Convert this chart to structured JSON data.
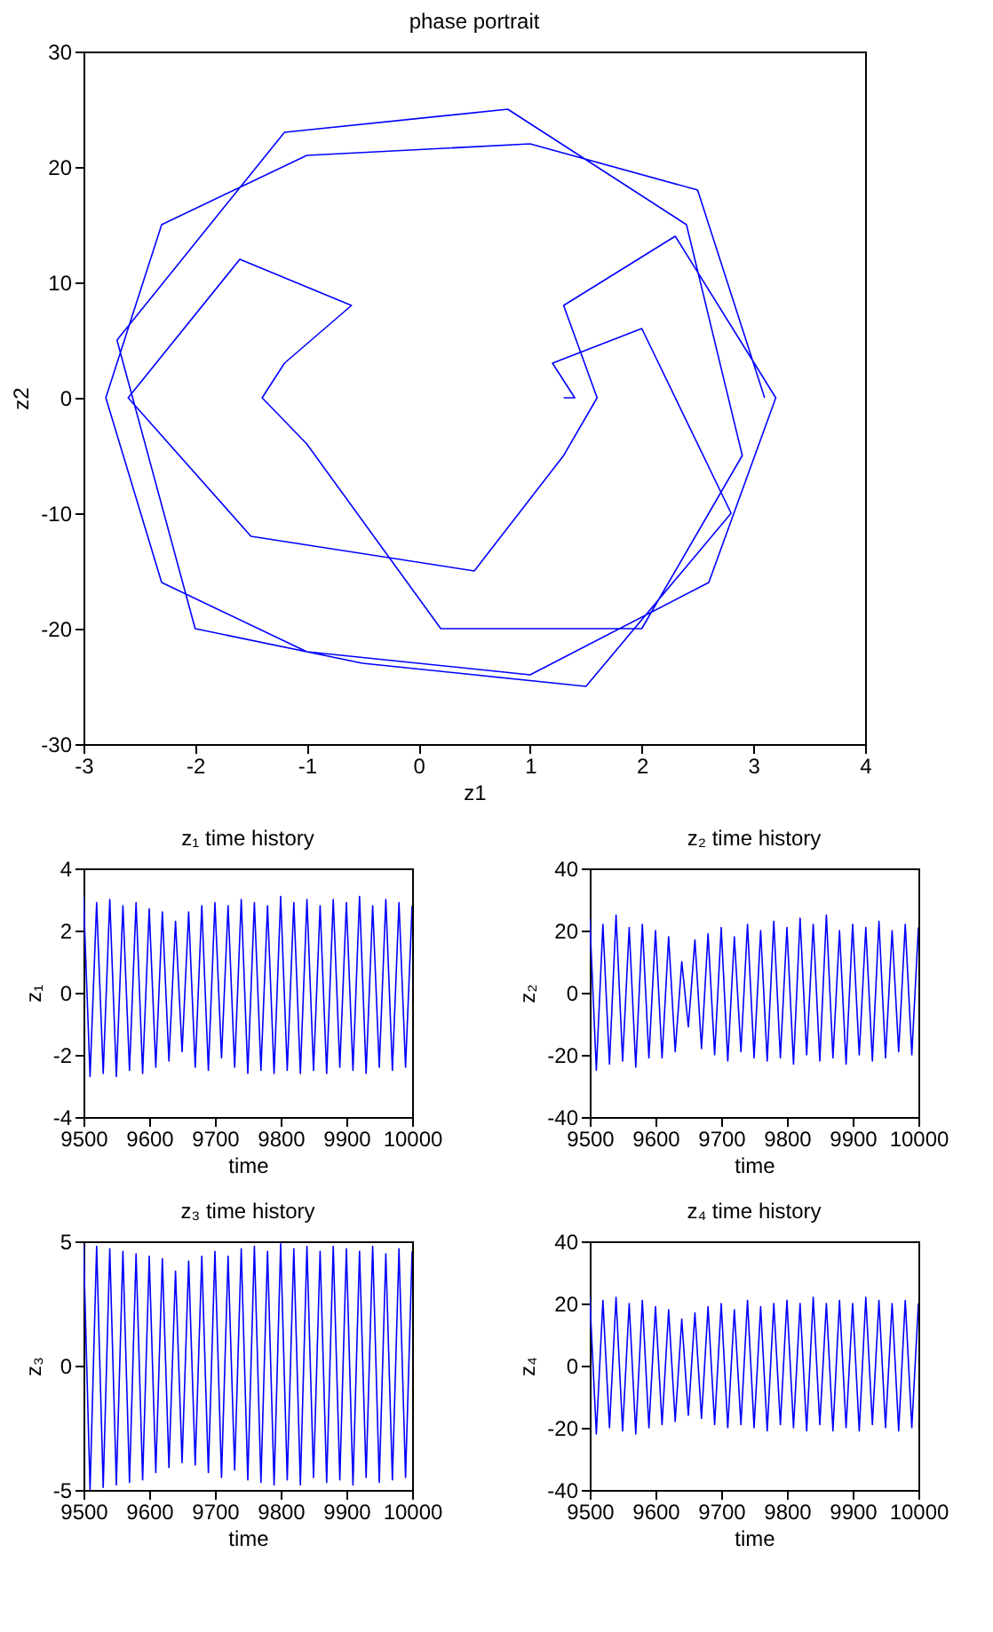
{
  "chart_data": [
    {
      "type": "line",
      "title": "phase portrait",
      "xlabel": "z1",
      "ylabel": "z2",
      "xlim": [
        -3,
        4
      ],
      "ylim": [
        -30,
        30
      ],
      "xticks": [
        -3,
        -2,
        -1,
        0,
        1,
        2,
        3,
        4
      ],
      "yticks": [
        -30,
        -20,
        -10,
        0,
        10,
        20,
        30
      ],
      "grid": false,
      "x": [
        3.1,
        2.5,
        1.0,
        -1.0,
        -2.3,
        -2.8,
        -2.3,
        -1.0,
        1.0,
        2.6,
        3.2,
        2.3,
        1.3,
        1.6,
        1.3,
        0.5,
        -1.5,
        -2.6,
        -1.6,
        -0.6,
        -1.2,
        -1.4,
        -1.0,
        0.2,
        2.0,
        2.9,
        2.4,
        0.8,
        -1.2,
        -2.7,
        -2.0,
        -0.5,
        1.5,
        2.8,
        2.0,
        1.2,
        1.4,
        1.3
      ],
      "series": [
        {
          "color": "#0000ff",
          "values": [
            0,
            18,
            22,
            21,
            15,
            0,
            -16,
            -22,
            -24,
            -16,
            0,
            14,
            8,
            0,
            -5,
            -15,
            -12,
            0,
            12,
            8,
            3,
            0,
            -4,
            -20,
            -20,
            -5,
            15,
            25,
            23,
            5,
            -20,
            -23,
            -25,
            -10,
            6,
            3,
            0,
            0
          ]
        }
      ]
    },
    {
      "type": "line",
      "title": "z₁ time history",
      "xlabel": "time",
      "ylabel": "z₁",
      "xlim": [
        9500,
        10000
      ],
      "ylim": [
        -4,
        4
      ],
      "xticks": [
        9500,
        9600,
        9700,
        9800,
        9900,
        10000
      ],
      "yticks": [
        -4,
        -2,
        0,
        2,
        4
      ],
      "grid": false,
      "x": [
        9500,
        9510,
        9520,
        9530,
        9540,
        9550,
        9560,
        9570,
        9580,
        9590,
        9600,
        9610,
        9620,
        9630,
        9640,
        9650,
        9660,
        9670,
        9680,
        9690,
        9700,
        9710,
        9720,
        9730,
        9740,
        9750,
        9760,
        9770,
        9780,
        9790,
        9800,
        9810,
        9820,
        9830,
        9840,
        9850,
        9860,
        9870,
        9880,
        9890,
        9900,
        9910,
        9920,
        9930,
        9940,
        9950,
        9960,
        9970,
        9980,
        9990,
        10000
      ],
      "series": [
        {
          "color": "#0000ff",
          "values": [
            3.1,
            -2.7,
            2.9,
            -2.6,
            3.0,
            -2.7,
            2.8,
            -2.5,
            2.9,
            -2.6,
            2.7,
            -2.4,
            2.6,
            -2.2,
            2.3,
            -1.9,
            2.6,
            -2.4,
            2.8,
            -2.5,
            2.9,
            -2.1,
            2.8,
            -2.4,
            3.0,
            -2.6,
            2.9,
            -2.5,
            2.8,
            -2.6,
            3.1,
            -2.5,
            2.9,
            -2.6,
            3.0,
            -2.5,
            2.8,
            -2.6,
            3.0,
            -2.4,
            2.9,
            -2.5,
            3.1,
            -2.6,
            2.8,
            -2.4,
            3.0,
            -2.5,
            2.9,
            -2.4,
            2.8
          ]
        }
      ]
    },
    {
      "type": "line",
      "title": "z₂ time history",
      "xlabel": "time",
      "ylabel": "z₂",
      "xlim": [
        9500,
        10000
      ],
      "ylim": [
        -40,
        40
      ],
      "xticks": [
        9500,
        9600,
        9700,
        9800,
        9900,
        10000
      ],
      "yticks": [
        -40,
        -20,
        0,
        20,
        40
      ],
      "grid": false,
      "x": [
        9500,
        9510,
        9520,
        9530,
        9540,
        9550,
        9560,
        9570,
        9580,
        9590,
        9600,
        9610,
        9620,
        9630,
        9640,
        9650,
        9660,
        9670,
        9680,
        9690,
        9700,
        9710,
        9720,
        9730,
        9740,
        9750,
        9760,
        9770,
        9780,
        9790,
        9800,
        9810,
        9820,
        9830,
        9840,
        9850,
        9860,
        9870,
        9880,
        9890,
        9900,
        9910,
        9920,
        9930,
        9940,
        9950,
        9960,
        9970,
        9980,
        9990,
        10000
      ],
      "series": [
        {
          "color": "#0000ff",
          "values": [
            24,
            -25,
            22,
            -23,
            25,
            -22,
            21,
            -24,
            22,
            -21,
            20,
            -21,
            18,
            -19,
            10,
            -11,
            17,
            -18,
            19,
            -20,
            21,
            -22,
            18,
            -19,
            22,
            -21,
            20,
            -22,
            23,
            -21,
            21,
            -23,
            24,
            -20,
            22,
            -22,
            25,
            -21,
            20,
            -23,
            22,
            -20,
            21,
            -22,
            23,
            -21,
            20,
            -19,
            22,
            -20,
            21
          ]
        }
      ]
    },
    {
      "type": "line",
      "title": "z₃ time history",
      "xlabel": "time",
      "ylabel": "z₃",
      "xlim": [
        9500,
        10000
      ],
      "ylim": [
        -5,
        5
      ],
      "xticks": [
        9500,
        9600,
        9700,
        9800,
        9900,
        10000
      ],
      "yticks": [
        -5,
        0,
        5
      ],
      "grid": false,
      "x": [
        9500,
        9510,
        9520,
        9530,
        9540,
        9550,
        9560,
        9570,
        9580,
        9590,
        9600,
        9610,
        9620,
        9630,
        9640,
        9650,
        9660,
        9670,
        9680,
        9690,
        9700,
        9710,
        9720,
        9730,
        9740,
        9750,
        9760,
        9770,
        9780,
        9790,
        9800,
        9810,
        9820,
        9830,
        9840,
        9850,
        9860,
        9870,
        9880,
        9890,
        9900,
        9910,
        9920,
        9930,
        9940,
        9950,
        9960,
        9970,
        9980,
        9990,
        10000
      ],
      "series": [
        {
          "color": "#0000ff",
          "values": [
            4.9,
            -5.0,
            4.8,
            -4.9,
            4.7,
            -4.8,
            4.6,
            -4.7,
            4.5,
            -4.6,
            4.4,
            -4.3,
            4.3,
            -4.1,
            3.8,
            -3.9,
            4.2,
            -4.0,
            4.4,
            -4.3,
            4.6,
            -4.5,
            4.4,
            -4.2,
            4.7,
            -4.6,
            4.8,
            -4.7,
            4.6,
            -4.8,
            4.9,
            -4.6,
            4.7,
            -4.8,
            4.8,
            -4.5,
            4.6,
            -4.7,
            4.8,
            -4.6,
            4.7,
            -4.8,
            4.6,
            -4.5,
            4.8,
            -4.7,
            4.5,
            -4.6,
            4.7,
            -4.5,
            4.6
          ]
        }
      ]
    },
    {
      "type": "line",
      "title": "z₄ time history",
      "xlabel": "time",
      "ylabel": "z₄",
      "xlim": [
        9500,
        10000
      ],
      "ylim": [
        -40,
        40
      ],
      "xticks": [
        9500,
        9600,
        9700,
        9800,
        9900,
        10000
      ],
      "yticks": [
        -40,
        -20,
        0,
        20,
        40
      ],
      "grid": false,
      "x": [
        9500,
        9510,
        9520,
        9530,
        9540,
        9550,
        9560,
        9570,
        9580,
        9590,
        9600,
        9610,
        9620,
        9630,
        9640,
        9650,
        9660,
        9670,
        9680,
        9690,
        9700,
        9710,
        9720,
        9730,
        9740,
        9750,
        9760,
        9770,
        9780,
        9790,
        9800,
        9810,
        9820,
        9830,
        9840,
        9850,
        9860,
        9870,
        9880,
        9890,
        9900,
        9910,
        9920,
        9930,
        9940,
        9950,
        9960,
        9970,
        9980,
        9990,
        10000
      ],
      "series": [
        {
          "color": "#0000ff",
          "values": [
            22,
            -22,
            21,
            -20,
            22,
            -21,
            20,
            -22,
            21,
            -20,
            19,
            -19,
            18,
            -18,
            15,
            -16,
            17,
            -17,
            19,
            -19,
            20,
            -20,
            18,
            -19,
            21,
            -20,
            19,
            -21,
            20,
            -19,
            21,
            -20,
            20,
            -21,
            22,
            -19,
            20,
            -21,
            21,
            -20,
            20,
            -21,
            22,
            -19,
            21,
            -20,
            20,
            -21,
            21,
            -20,
            20
          ]
        }
      ]
    }
  ]
}
